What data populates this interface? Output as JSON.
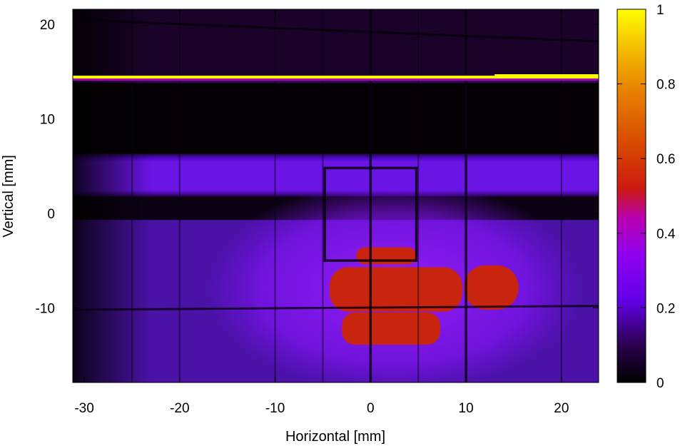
{
  "chart_data": {
    "type": "heatmap",
    "title": "",
    "xlabel": "Horizontal [mm]",
    "ylabel": "Vertical [mm]",
    "xlim": [
      -31.2,
      23.9
    ],
    "ylim": [
      -17.9,
      21.6
    ],
    "x_ticks": [
      -30,
      -20,
      -10,
      0,
      10,
      20
    ],
    "y_ticks": [
      -10,
      0,
      10,
      20
    ],
    "x_tick_labels": [
      "-30",
      "-20",
      "-10",
      "0",
      "10",
      "20"
    ],
    "y_tick_labels": [
      "-10",
      "0",
      "10",
      "20"
    ],
    "colorbar": {
      "range": [
        0,
        1
      ],
      "ticks": [
        0,
        0.2,
        0.4,
        0.6,
        0.8,
        1
      ],
      "tick_labels": [
        "0",
        "0.2",
        "0.4",
        "0.6",
        "0.8",
        "1"
      ],
      "colormap": [
        "#000000",
        "#3a007a",
        "#8a00ff",
        "#b400c8",
        "#cc2a00",
        "#e06a00",
        "#f2b400",
        "#ffff00"
      ]
    },
    "regions": [
      {
        "name": "bright-line",
        "x": [
          -31.2,
          23.9
        ],
        "y": [
          13.8,
          14.5
        ],
        "value": 1.0
      },
      {
        "name": "dark-band",
        "x": [
          -31.2,
          23.9
        ],
        "y": [
          6.3,
          13.8
        ],
        "value": 0.0
      },
      {
        "name": "purple-band",
        "x": [
          -31.2,
          23.9
        ],
        "y": [
          1.8,
          6.1
        ],
        "value": 0.22
      },
      {
        "name": "beam-spot",
        "center": [
          2.5,
          -8
        ],
        "width": 20,
        "height": 9,
        "value": 0.52
      }
    ]
  }
}
